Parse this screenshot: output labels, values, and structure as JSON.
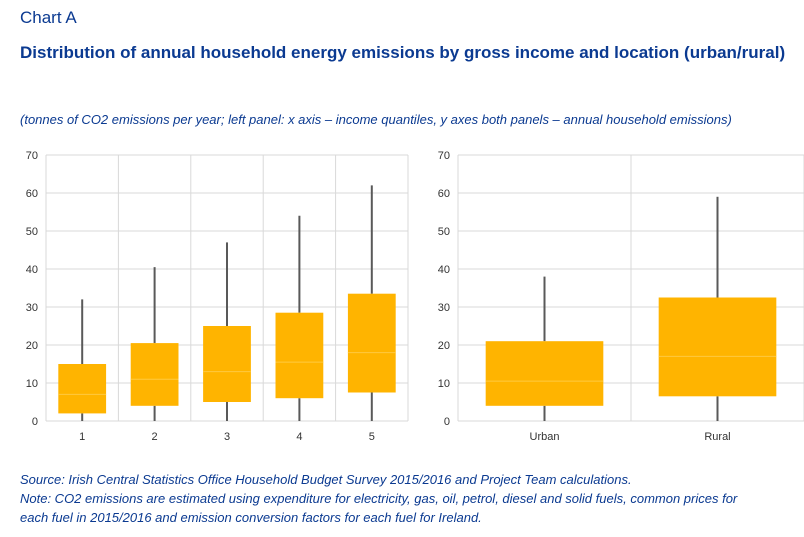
{
  "header": {
    "label": "Chart A",
    "title": "Distribution of annual household energy emissions by gross income and location (urban/rural)",
    "subtitle": "(tonnes of CO2 emissions per year; left panel: x axis – income quantiles, y axes both panels – annual household emissions)"
  },
  "chart_data": [
    {
      "type": "boxplot",
      "categories": [
        "1",
        "2",
        "3",
        "4",
        "5"
      ],
      "ylim": [
        0,
        70
      ],
      "yticks": [
        0,
        10,
        20,
        30,
        40,
        50,
        60,
        70
      ],
      "grid": true,
      "color": "#ffb400",
      "boxes": [
        {
          "min": 0,
          "q1": 2,
          "median": 7,
          "q3": 15,
          "max": 32
        },
        {
          "min": 0,
          "q1": 4,
          "median": 11,
          "q3": 20.5,
          "max": 40.5
        },
        {
          "min": 0,
          "q1": 5,
          "median": 13,
          "q3": 25,
          "max": 47
        },
        {
          "min": 0,
          "q1": 6,
          "median": 15.5,
          "q3": 28.5,
          "max": 54
        },
        {
          "min": 0,
          "q1": 7.5,
          "median": 18,
          "q3": 33.5,
          "max": 62
        }
      ]
    },
    {
      "type": "boxplot",
      "categories": [
        "Urban",
        "Rural"
      ],
      "ylim": [
        0,
        70
      ],
      "yticks": [
        0,
        10,
        20,
        30,
        40,
        50,
        60,
        70
      ],
      "grid": true,
      "color": "#ffb400",
      "boxes": [
        {
          "min": 0,
          "q1": 4,
          "median": 10.5,
          "q3": 21,
          "max": 38
        },
        {
          "min": 0,
          "q1": 6.5,
          "median": 17,
          "q3": 32.5,
          "max": 59
        }
      ]
    }
  ],
  "footer": {
    "source": "Source: Irish Central Statistics Office Household Budget Survey 2015/2016 and Project Team calculations.",
    "note_line1": "Note: CO2 emissions are estimated using expenditure for electricity, gas, oil, petrol, diesel and solid fuels, common prices for",
    "note_line2": "each fuel in 2015/2016 and emission conversion factors for each fuel for Ireland."
  }
}
